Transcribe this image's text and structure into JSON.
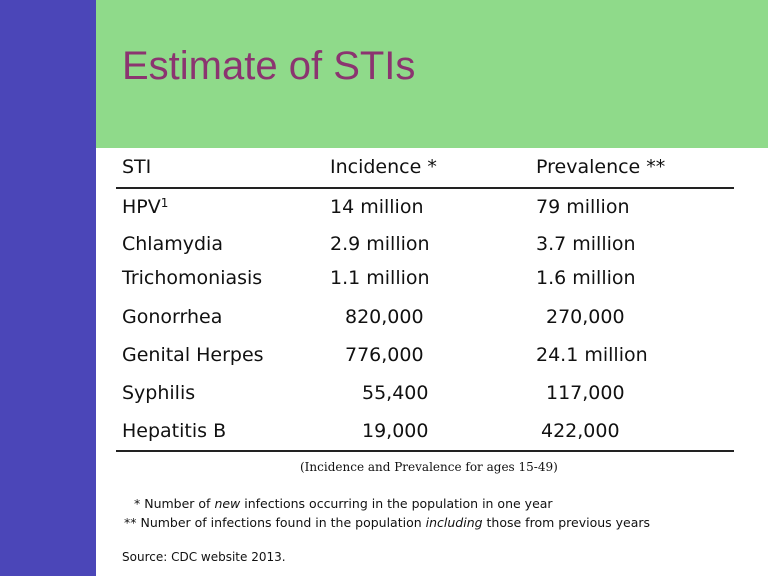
{
  "slide": {
    "title": "Estimate of STIs"
  },
  "table": {
    "headers": [
      "STI",
      "Incidence *",
      "Prevalence **"
    ],
    "rows": [
      {
        "sti": "HPV",
        "sup": "1",
        "incidence": "14 million",
        "prevalence": "79 million"
      },
      {
        "sti": "Chlamydia",
        "incidence": "2.9 million",
        "prevalence": "3.7 million"
      },
      {
        "sti": "Trichomoniasis",
        "incidence": "1.1 million",
        "prevalence": "1.6 million"
      },
      {
        "sti": "Gonorrhea",
        "incidence": "820,000",
        "prevalence": "270,000"
      },
      {
        "sti": "Genital Herpes",
        "incidence": "776,000",
        "prevalence": "24.1 million"
      },
      {
        "sti": "Syphilis",
        "incidence": "55,400",
        "prevalence": "117,000"
      },
      {
        "sti": "Hepatitis B",
        "incidence": "19,000",
        "prevalence": "422,000"
      }
    ]
  },
  "notes": {
    "age_note": "(Incidence and Prevalence for ages 15-49)",
    "footnote1_prefix": "* Number of ",
    "footnote1_em": "new",
    "footnote1_suffix": " infections occurring in the population in one year",
    "footnote2_prefix": "** Number of infections found in the population ",
    "footnote2_em": "including",
    "footnote2_suffix": " those from previous years",
    "source": "Source: CDC website 2013."
  },
  "colors": {
    "sidebar": "#4b46b8",
    "header": "#8fda8a",
    "title": "#8b3470"
  }
}
